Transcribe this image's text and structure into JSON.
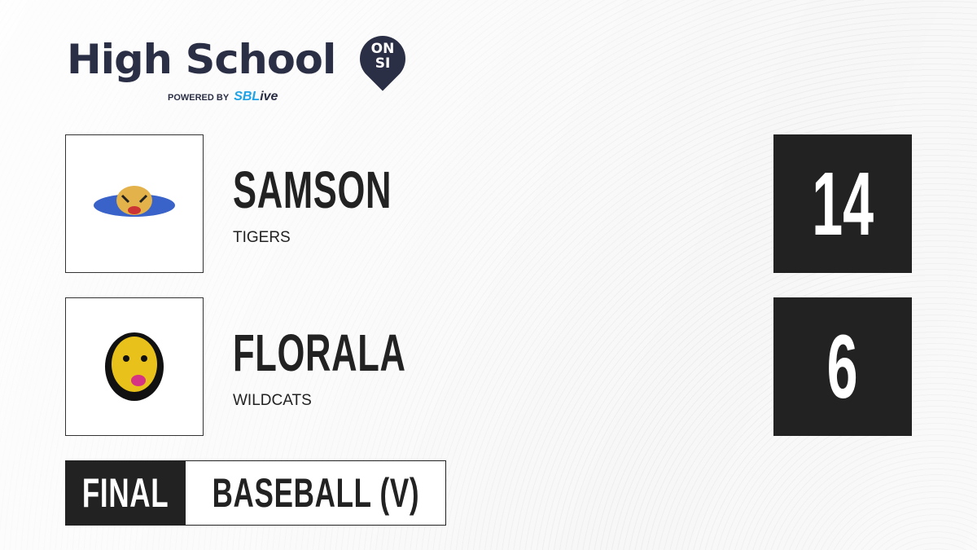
{
  "brand": {
    "title": "High School",
    "badge_top": "ON",
    "badge_bottom": "SI",
    "powered_by": "POWERED BY",
    "partner_prefix": "SBL",
    "partner_suffix": "ive"
  },
  "teams": [
    {
      "name": "SAMSON",
      "mascot": "TIGERS",
      "score": "14",
      "logo_colors": [
        "#3a63c9",
        "#e3b24a"
      ]
    },
    {
      "name": "FLORALA",
      "mascot": "WILDCATS",
      "score": "6",
      "logo_colors": [
        "#111111",
        "#e8c21a"
      ]
    }
  ],
  "game": {
    "status": "FINAL",
    "sport": "BASEBALL (V)"
  },
  "colors": {
    "dark": "#222222",
    "brand": "#2b2f45",
    "accent": "#1fa3e6"
  }
}
